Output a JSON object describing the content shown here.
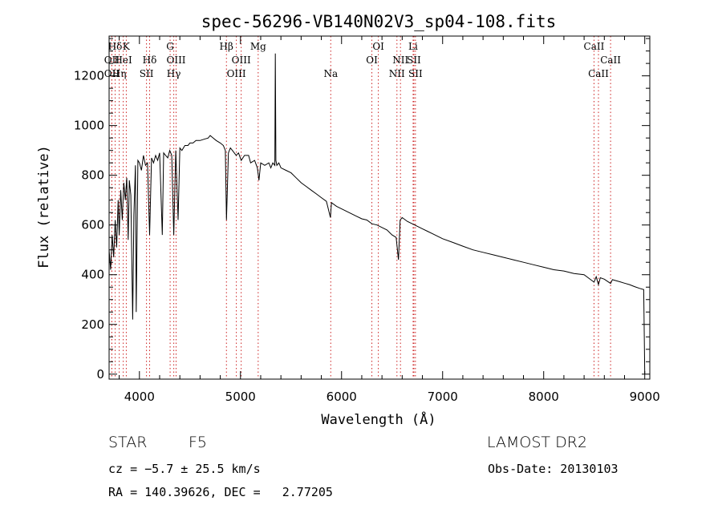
{
  "chart_data": {
    "type": "line",
    "title": "spec-56296-VB140N02V3_sp04-108.fits",
    "xlabel": "Wavelength (Å)",
    "ylabel": "Flux (relative)",
    "xlim": [
      3700,
      9050
    ],
    "ylim": [
      -20,
      1360
    ],
    "x_ticks": [
      4000,
      5000,
      6000,
      7000,
      8000,
      9000
    ],
    "y_ticks": [
      0,
      200,
      400,
      600,
      800,
      1000,
      1200
    ],
    "grid": false,
    "line_color": "#000000",
    "marker_line_color": "#cc2222",
    "series": [
      {
        "x": [
          3700,
          3715,
          3730,
          3745,
          3760,
          3775,
          3790,
          3800,
          3815,
          3830,
          3845,
          3860,
          3875,
          3889,
          3900,
          3915,
          3933,
          3945,
          3960,
          3968,
          3985,
          4000,
          4020,
          4040,
          4060,
          4080,
          4101,
          4120,
          4140,
          4160,
          4180,
          4200,
          4226,
          4240,
          4260,
          4280,
          4300,
          4320,
          4340,
          4360,
          4383,
          4400,
          4420,
          4450,
          4480,
          4500,
          4530,
          4560,
          4600,
          4640,
          4680,
          4700,
          4730,
          4760,
          4800,
          4830,
          4850,
          4861,
          4880,
          4900,
          4920,
          4957,
          4980,
          5007,
          5040,
          5080,
          5100,
          5140,
          5167,
          5183,
          5200,
          5240,
          5280,
          5300,
          5320,
          5340,
          5345,
          5350,
          5360,
          5380,
          5400,
          5450,
          5500,
          5550,
          5600,
          5650,
          5700,
          5750,
          5800,
          5850,
          5890,
          5900,
          5950,
          6000,
          6050,
          6100,
          6150,
          6200,
          6250,
          6300,
          6350,
          6400,
          6450,
          6500,
          6540,
          6563,
          6580,
          6600,
          6650,
          6700,
          6750,
          6800,
          6850,
          6900,
          6950,
          7000,
          7100,
          7200,
          7300,
          7400,
          7500,
          7600,
          7700,
          7800,
          7900,
          8000,
          8100,
          8200,
          8300,
          8400,
          8498,
          8520,
          8542,
          8560,
          8600,
          8662,
          8680,
          8700,
          8750,
          8800,
          8850,
          8900,
          8950,
          8990,
          9000
        ],
        "y": [
          500,
          420,
          560,
          470,
          620,
          510,
          700,
          560,
          740,
          620,
          770,
          700,
          790,
          540,
          780,
          720,
          220,
          640,
          840,
          250,
          860,
          850,
          820,
          880,
          840,
          850,
          560,
          870,
          850,
          880,
          860,
          890,
          560,
          890,
          880,
          870,
          900,
          880,
          560,
          900,
          620,
          910,
          900,
          920,
          920,
          930,
          930,
          940,
          940,
          945,
          950,
          960,
          950,
          940,
          930,
          920,
          900,
          620,
          890,
          910,
          900,
          880,
          890,
          860,
          880,
          880,
          850,
          860,
          830,
          780,
          850,
          840,
          850,
          830,
          850,
          840,
          1290,
          860,
          840,
          850,
          830,
          820,
          810,
          790,
          770,
          755,
          740,
          725,
          710,
          695,
          630,
          690,
          675,
          665,
          655,
          645,
          635,
          625,
          620,
          605,
          600,
          590,
          580,
          560,
          550,
          460,
          620,
          630,
          615,
          605,
          595,
          585,
          575,
          565,
          555,
          545,
          530,
          515,
          500,
          490,
          480,
          470,
          460,
          450,
          440,
          430,
          420,
          415,
          405,
          400,
          370,
          392,
          360,
          388,
          382,
          365,
          380,
          378,
          372,
          366,
          360,
          352,
          345,
          340,
          2
        ]
      }
    ],
    "line_markers": [
      {
        "label": "Hδ",
        "x": 3760,
        "row": 1
      },
      {
        "label": "K",
        "x": 3870,
        "row": 1
      },
      {
        "label": "OII",
        "x": 3727,
        "row": 2
      },
      {
        "label": "HeI",
        "x": 3840,
        "row": 2
      },
      {
        "label": "Hδ",
        "x": 4101,
        "row": 2
      },
      {
        "label": "OII",
        "x": 3727,
        "row": 3
      },
      {
        "label": "Hη",
        "x": 3800,
        "row": 3
      },
      {
        "label": "SII",
        "x": 4070,
        "row": 3
      },
      {
        "label": "G",
        "x": 4304,
        "row": 1
      },
      {
        "label": "OIII",
        "x": 4363,
        "row": 2
      },
      {
        "label": "Hγ",
        "x": 4340,
        "row": 3
      },
      {
        "label": "Hβ",
        "x": 4861,
        "row": 1
      },
      {
        "label": "Mg",
        "x": 5175,
        "row": 1
      },
      {
        "label": "OIII",
        "x": 5007,
        "row": 2
      },
      {
        "label": "OIII",
        "x": 4959,
        "row": 3
      },
      {
        "label": "Na",
        "x": 5893,
        "row": 3
      },
      {
        "label": "OI",
        "x": 6364,
        "row": 1
      },
      {
        "label": "OI",
        "x": 6300,
        "row": 2
      },
      {
        "label": "Li",
        "x": 6708,
        "row": 1
      },
      {
        "label": "NII",
        "x": 6583,
        "row": 2
      },
      {
        "label": "SII",
        "x": 6716,
        "row": 2
      },
      {
        "label": "NII",
        "x": 6548,
        "row": 3
      },
      {
        "label": "SII",
        "x": 6731,
        "row": 3
      },
      {
        "label": "CaII",
        "x": 8498,
        "row": 1
      },
      {
        "label": "CaII",
        "x": 8662,
        "row": 2
      },
      {
        "label": "CaII",
        "x": 8542,
        "row": 3
      }
    ]
  },
  "info": {
    "object_class": "STAR",
    "subclass": "F5",
    "survey": "LAMOST DR2",
    "redshift": "cz = −5.7 ± 25.5 km/s",
    "obs_date": "Obs-Date: 20130103",
    "coords": "RA = 140.39626, DEC =   2.77205"
  }
}
